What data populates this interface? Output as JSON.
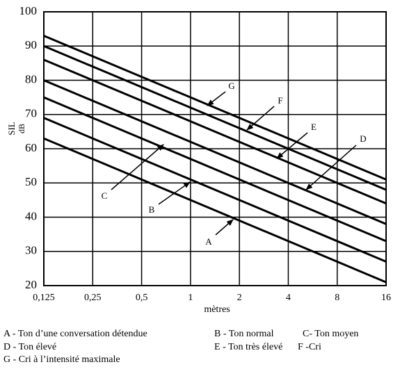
{
  "chart_data": {
    "type": "line",
    "y_label": "SIL",
    "y_unit": "dB",
    "x_label": "mètres",
    "x": [
      0.125,
      16
    ],
    "xscale": "log",
    "grid": true,
    "color": "#000000",
    "xlim": [
      0.125,
      16
    ],
    "xticks": [
      {
        "value": 0.125,
        "label": "0,125"
      },
      {
        "value": 0.25,
        "label": "0,25"
      },
      {
        "value": 0.5,
        "label": "0,5"
      },
      1,
      2,
      4,
      8,
      16
    ],
    "ylim": [
      20,
      100
    ],
    "yticks": [
      20,
      30,
      40,
      50,
      60,
      70,
      80,
      90,
      100
    ],
    "series": [
      {
        "name": "A",
        "label": "A - Ton d’une conversation détendue",
        "values": [
          63,
          21
        ]
      },
      {
        "name": "B",
        "label": "B - Ton normal",
        "values": [
          69,
          27
        ]
      },
      {
        "name": "C",
        "label": "C- Ton moyen",
        "values": [
          75,
          33
        ]
      },
      {
        "name": "D",
        "label": "D - Ton élevé",
        "values": [
          80,
          38
        ]
      },
      {
        "name": "E",
        "label": "E - Ton très élevé",
        "values": [
          86,
          44
        ]
      },
      {
        "name": "F",
        "label": "F -Cri",
        "values": [
          90,
          48
        ]
      },
      {
        "name": "G",
        "label": "G - Cri à l’intensité maximale",
        "values": [
          93,
          51
        ]
      }
    ]
  }
}
